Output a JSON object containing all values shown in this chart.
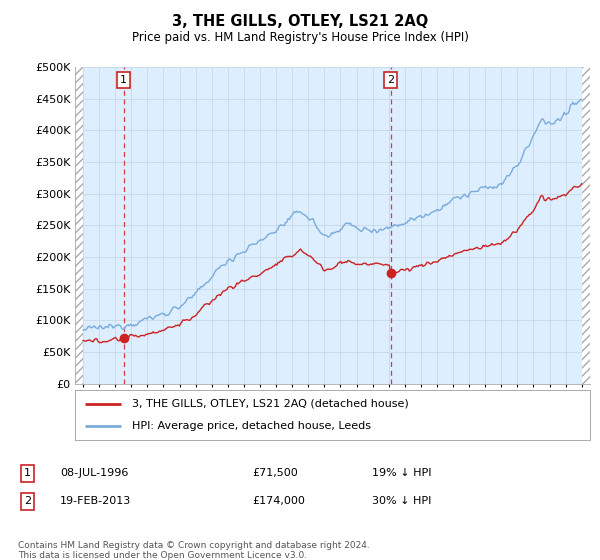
{
  "title": "3, THE GILLS, OTLEY, LS21 2AQ",
  "subtitle": "Price paid vs. HM Land Registry's House Price Index (HPI)",
  "footer": "Contains HM Land Registry data © Crown copyright and database right 2024.\nThis data is licensed under the Open Government Licence v3.0.",
  "legend_line1": "3, THE GILLS, OTLEY, LS21 2AQ (detached house)",
  "legend_line2": "HPI: Average price, detached house, Leeds",
  "annotation1_label": "1",
  "annotation1_date": "08-JUL-1996",
  "annotation1_price": "£71,500",
  "annotation1_hpi": "19% ↓ HPI",
  "annotation2_label": "2",
  "annotation2_date": "19-FEB-2013",
  "annotation2_price": "£174,000",
  "annotation2_hpi": "30% ↓ HPI",
  "purchase1_year": 1996.52,
  "purchase1_price": 71500,
  "purchase2_year": 2013.13,
  "purchase2_price": 174000,
  "ylim": [
    0,
    500000
  ],
  "yticks": [
    0,
    50000,
    100000,
    150000,
    200000,
    250000,
    300000,
    350000,
    400000,
    450000,
    500000
  ],
  "xlim_start": 1993.5,
  "xlim_end": 2025.5,
  "hpi_color": "#7aabdb",
  "price_color": "#cc2222",
  "hatch_color": "#bbbbbb",
  "background_plot": "#ddeeff",
  "grid_color": "#c8d8e8",
  "annotation_box_color": "#cc2222"
}
